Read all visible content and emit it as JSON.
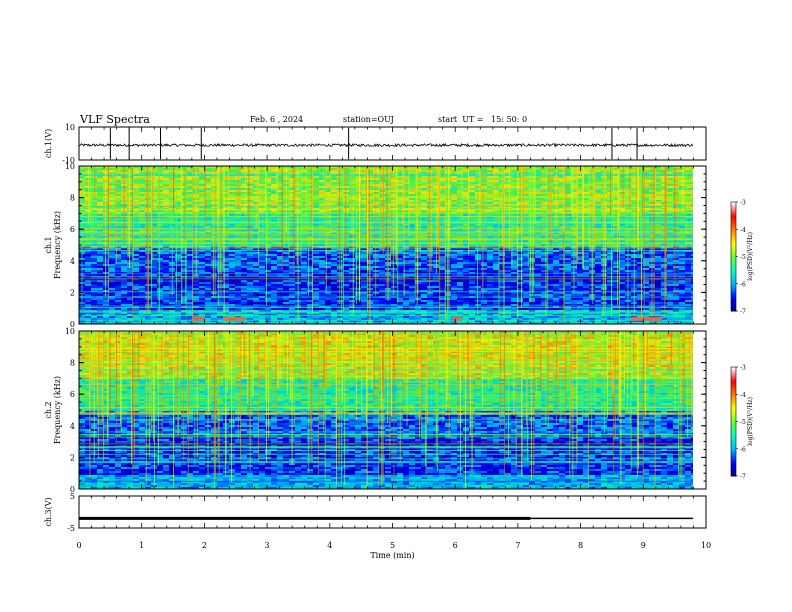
{
  "header": {
    "title": "VLF Spectra",
    "date": "Feb. 6 , 2024",
    "station": "station=OUJ",
    "start_time": "start  UT =   15: 50: 0"
  },
  "chart_data": [
    {
      "type": "line",
      "panel": "ch.1 waveform",
      "ylabel": "ch.1(V)",
      "ylim": [
        -10,
        10
      ],
      "yticks": [
        "10",
        "-10"
      ],
      "xlim": [
        0,
        10
      ],
      "baseline": -1,
      "spikes_min": [
        0.5,
        0.8,
        1.3,
        1.95,
        4.3,
        8.5,
        8.9
      ]
    },
    {
      "type": "heatmap",
      "panel": "ch.1 spectrogram",
      "ylabel": "ch.1\nFrequency (kHz)",
      "ylabel_lines": [
        "ch.1",
        "Frequency (kHz)"
      ],
      "ylim": [
        0,
        10
      ],
      "yticks": [
        "0",
        "2",
        "4",
        "6",
        "8",
        "10"
      ],
      "xlim": [
        0,
        10
      ],
      "colorbar": {
        "label": "log(PSD)(V²/Hz)",
        "range": [
          -7,
          -3
        ],
        "ticks": [
          "-3",
          "-4",
          "-5",
          "-6",
          "-7"
        ]
      }
    },
    {
      "type": "heatmap",
      "panel": "ch.2 spectrogram",
      "ylabel_lines": [
        "ch.2",
        "Frequency (kHz)"
      ],
      "ylim": [
        0,
        10
      ],
      "yticks": [
        "0",
        "2",
        "4",
        "6",
        "8",
        "10"
      ],
      "xlim": [
        0,
        10
      ],
      "colorbar": {
        "label": "log(PSD)(V²/Hz)",
        "range": [
          -7,
          -3
        ],
        "ticks": [
          "-3",
          "-4",
          "-5",
          "-6",
          "-7"
        ]
      }
    },
    {
      "type": "line",
      "panel": "ch.3 waveform",
      "ylabel": "ch.3(V)",
      "ylim": [
        -5,
        5
      ],
      "yticks": [
        "5",
        "-5"
      ],
      "xlim": [
        0,
        10
      ],
      "value": -2,
      "thick_until_min": 7.2
    }
  ],
  "xaxis": {
    "label": "Time  (min)",
    "ticks": [
      "0",
      "1",
      "2",
      "3",
      "4",
      "5",
      "6",
      "7",
      "8",
      "9",
      "10"
    ]
  },
  "colors": {
    "background": "#000080",
    "colormap": [
      "#00008f",
      "#0000ff",
      "#00b4ff",
      "#00ffc8",
      "#64ff32",
      "#ffff00",
      "#ff8000",
      "#ff0000",
      "#ffffff"
    ]
  }
}
